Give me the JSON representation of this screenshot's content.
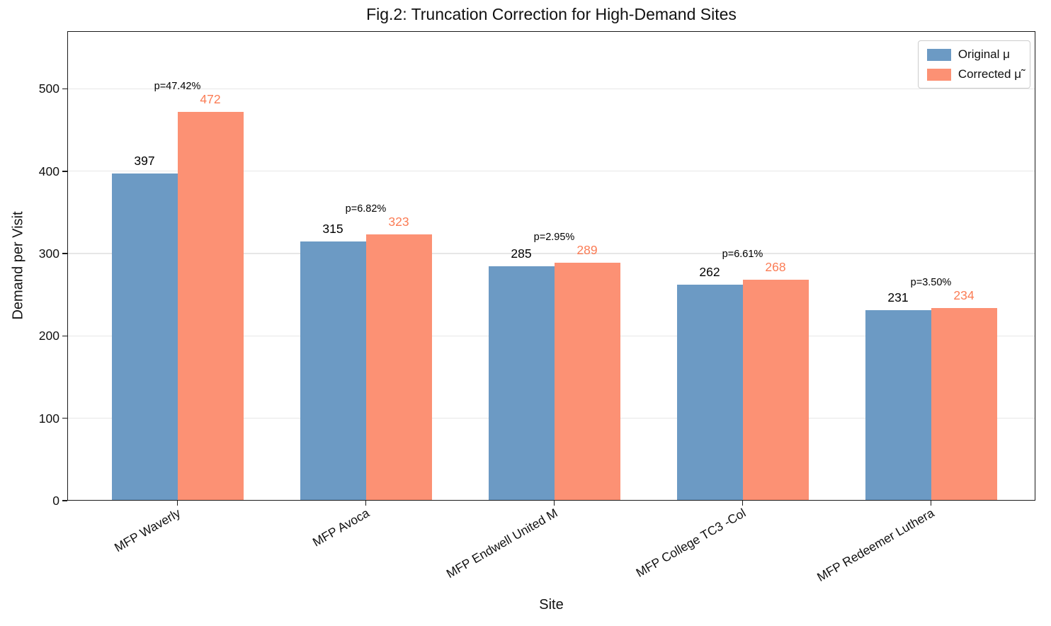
{
  "chart_data": {
    "type": "bar",
    "title": "Fig.2: Truncation Correction for High-Demand Sites",
    "xlabel": "Site",
    "ylabel": "Demand per Visit",
    "ylim": [
      0,
      570
    ],
    "yticks": [
      0,
      100,
      200,
      300,
      400,
      500
    ],
    "grid": "horizontal",
    "legend_position": "upper right",
    "categories": [
      "MFP Waverly",
      "MFP Avoca",
      "MFP Endwell United M",
      "MFP College TC3 -Col",
      "MFP Redeemer Luthera"
    ],
    "series": [
      {
        "name": "Original μ",
        "color": "#6C9AC4",
        "label_color": "#000000",
        "values": [
          397,
          315,
          285,
          262,
          231
        ]
      },
      {
        "name": "Corrected μ̃",
        "color": "#FC9174",
        "label_color": "#FB7C55",
        "values": [
          472,
          323,
          289,
          268,
          234
        ]
      }
    ],
    "annotations": [
      "p=47.42%",
      "p=6.82%",
      "p=2.95%",
      "p=6.61%",
      "p=3.50%"
    ],
    "colors": {
      "grid": "#e7e7e7",
      "spine": "#1a1a1a"
    }
  }
}
